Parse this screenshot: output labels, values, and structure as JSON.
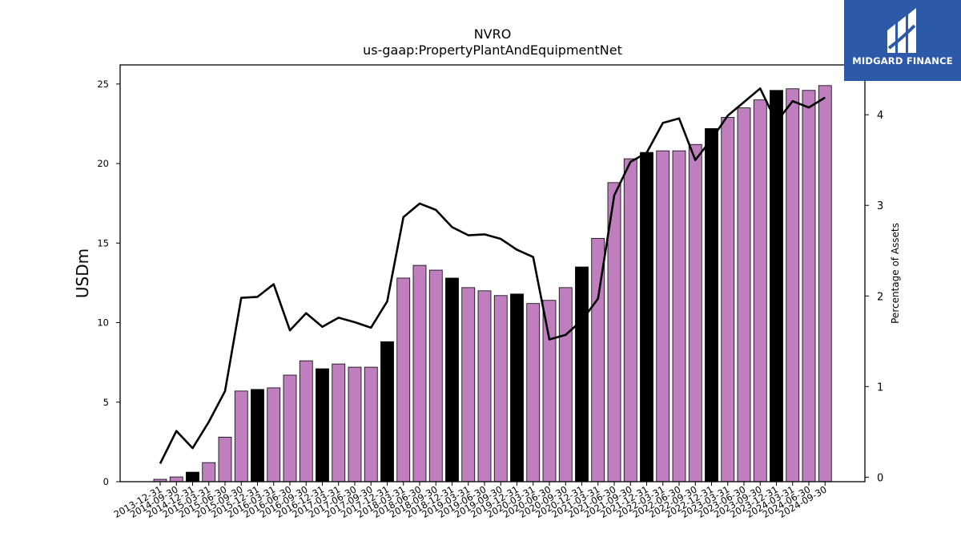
{
  "logo": {
    "text": "MIDGARD FINANCE"
  },
  "colors": {
    "bar": "#bf7fbf",
    "bar_highlight": "#000000",
    "line": "#000000",
    "logo_bg": "#2d5aa8"
  },
  "chart_data": {
    "type": "bar",
    "title": "NVRO",
    "subtitle": "us-gaap:PropertyPlantAndEquipmentNet",
    "ylabel": "USDm",
    "y2label": "Percentage of Assets",
    "ylim": [
      0,
      26.2
    ],
    "y2lim": [
      -0.05,
      4.55
    ],
    "yticks": [
      0,
      5,
      10,
      15,
      20,
      25
    ],
    "y2ticks": [
      0,
      1,
      2,
      3,
      4
    ],
    "categories": [
      "2013-12-31",
      "2014-09-30",
      "2014-12-31",
      "2015-03-31",
      "2015-06-30",
      "2015-09-30",
      "2015-12-31",
      "2016-03-31",
      "2016-06-30",
      "2016-09-30",
      "2016-12-31",
      "2017-03-31",
      "2017-06-30",
      "2017-09-30",
      "2017-12-31",
      "2018-03-31",
      "2018-06-30",
      "2018-09-30",
      "2018-12-31",
      "2019-03-31",
      "2019-06-30",
      "2019-09-30",
      "2019-12-31",
      "2020-03-31",
      "2020-06-30",
      "2020-09-30",
      "2020-12-31",
      "2021-03-31",
      "2021-06-30",
      "2021-09-30",
      "2021-12-31",
      "2022-03-31",
      "2022-06-30",
      "2022-09-30",
      "2022-12-31",
      "2023-03-31",
      "2023-06-30",
      "2023-09-30",
      "2023-12-31",
      "2024-03-31",
      "2024-06-30",
      "2024-09-30"
    ],
    "series": [
      {
        "type": "bar",
        "values": [
          0.15,
          0.3,
          0.6,
          1.2,
          2.8,
          5.7,
          5.8,
          5.9,
          6.7,
          7.6,
          7.1,
          7.4,
          7.2,
          7.2,
          8.8,
          12.8,
          13.6,
          13.3,
          12.8,
          12.2,
          12.0,
          11.7,
          11.8,
          11.2,
          11.4,
          12.2,
          13.5,
          15.3,
          18.8,
          20.3,
          20.7,
          20.8,
          20.8,
          21.2,
          22.2,
          22.9,
          23.5,
          24.0,
          24.6,
          24.7,
          24.6,
          24.9
        ],
        "highlight": [
          false,
          false,
          true,
          false,
          false,
          false,
          true,
          false,
          false,
          false,
          true,
          false,
          false,
          false,
          true,
          false,
          false,
          false,
          true,
          false,
          false,
          false,
          true,
          false,
          false,
          false,
          true,
          false,
          false,
          false,
          true,
          false,
          false,
          false,
          true,
          false,
          false,
          false,
          true,
          false,
          false,
          false
        ]
      },
      {
        "type": "line",
        "axis": "right",
        "values": [
          0.15,
          0.51,
          0.32,
          0.61,
          0.95,
          1.98,
          1.99,
          2.13,
          1.62,
          1.81,
          1.66,
          1.76,
          1.71,
          1.65,
          1.94,
          2.87,
          3.02,
          2.95,
          2.76,
          2.67,
          2.68,
          2.63,
          2.51,
          2.43,
          1.52,
          1.57,
          1.73,
          1.97,
          3.11,
          3.48,
          3.58,
          3.91,
          3.96,
          3.5,
          3.73,
          3.99,
          4.14,
          4.29,
          3.92,
          4.15,
          4.08,
          4.19
        ]
      }
    ]
  }
}
